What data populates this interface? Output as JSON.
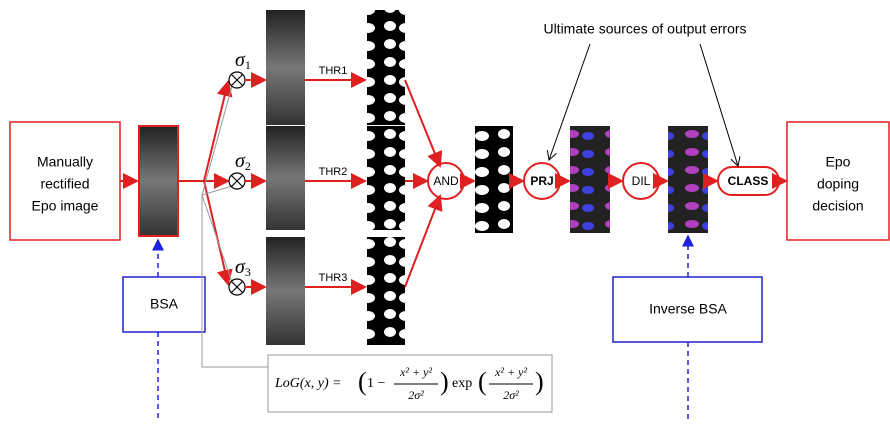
{
  "input": {
    "lines": [
      "Manually",
      "rectified",
      "Epo image"
    ]
  },
  "bsa": "BSA",
  "inverse_bsa": "Inverse BSA",
  "sigmas": [
    {
      "symbol": "σ",
      "index": "1"
    },
    {
      "symbol": "σ",
      "index": "2"
    },
    {
      "symbol": "σ",
      "index": "3"
    }
  ],
  "thresholds": [
    "THR1",
    "THR2",
    "THR3"
  ],
  "operations": {
    "and": "AND",
    "prj": "PRJ",
    "dil": "DIL",
    "class": "CLASS"
  },
  "output": {
    "lines": [
      "Epo",
      "doping",
      "decision"
    ]
  },
  "annotation": "Ultimate sources of output errors",
  "formula": {
    "lhs": "LoG(x, y) =",
    "term1": "1 −",
    "numerator": "x² + y²",
    "denominator": "2σ²",
    "func": "exp"
  }
}
